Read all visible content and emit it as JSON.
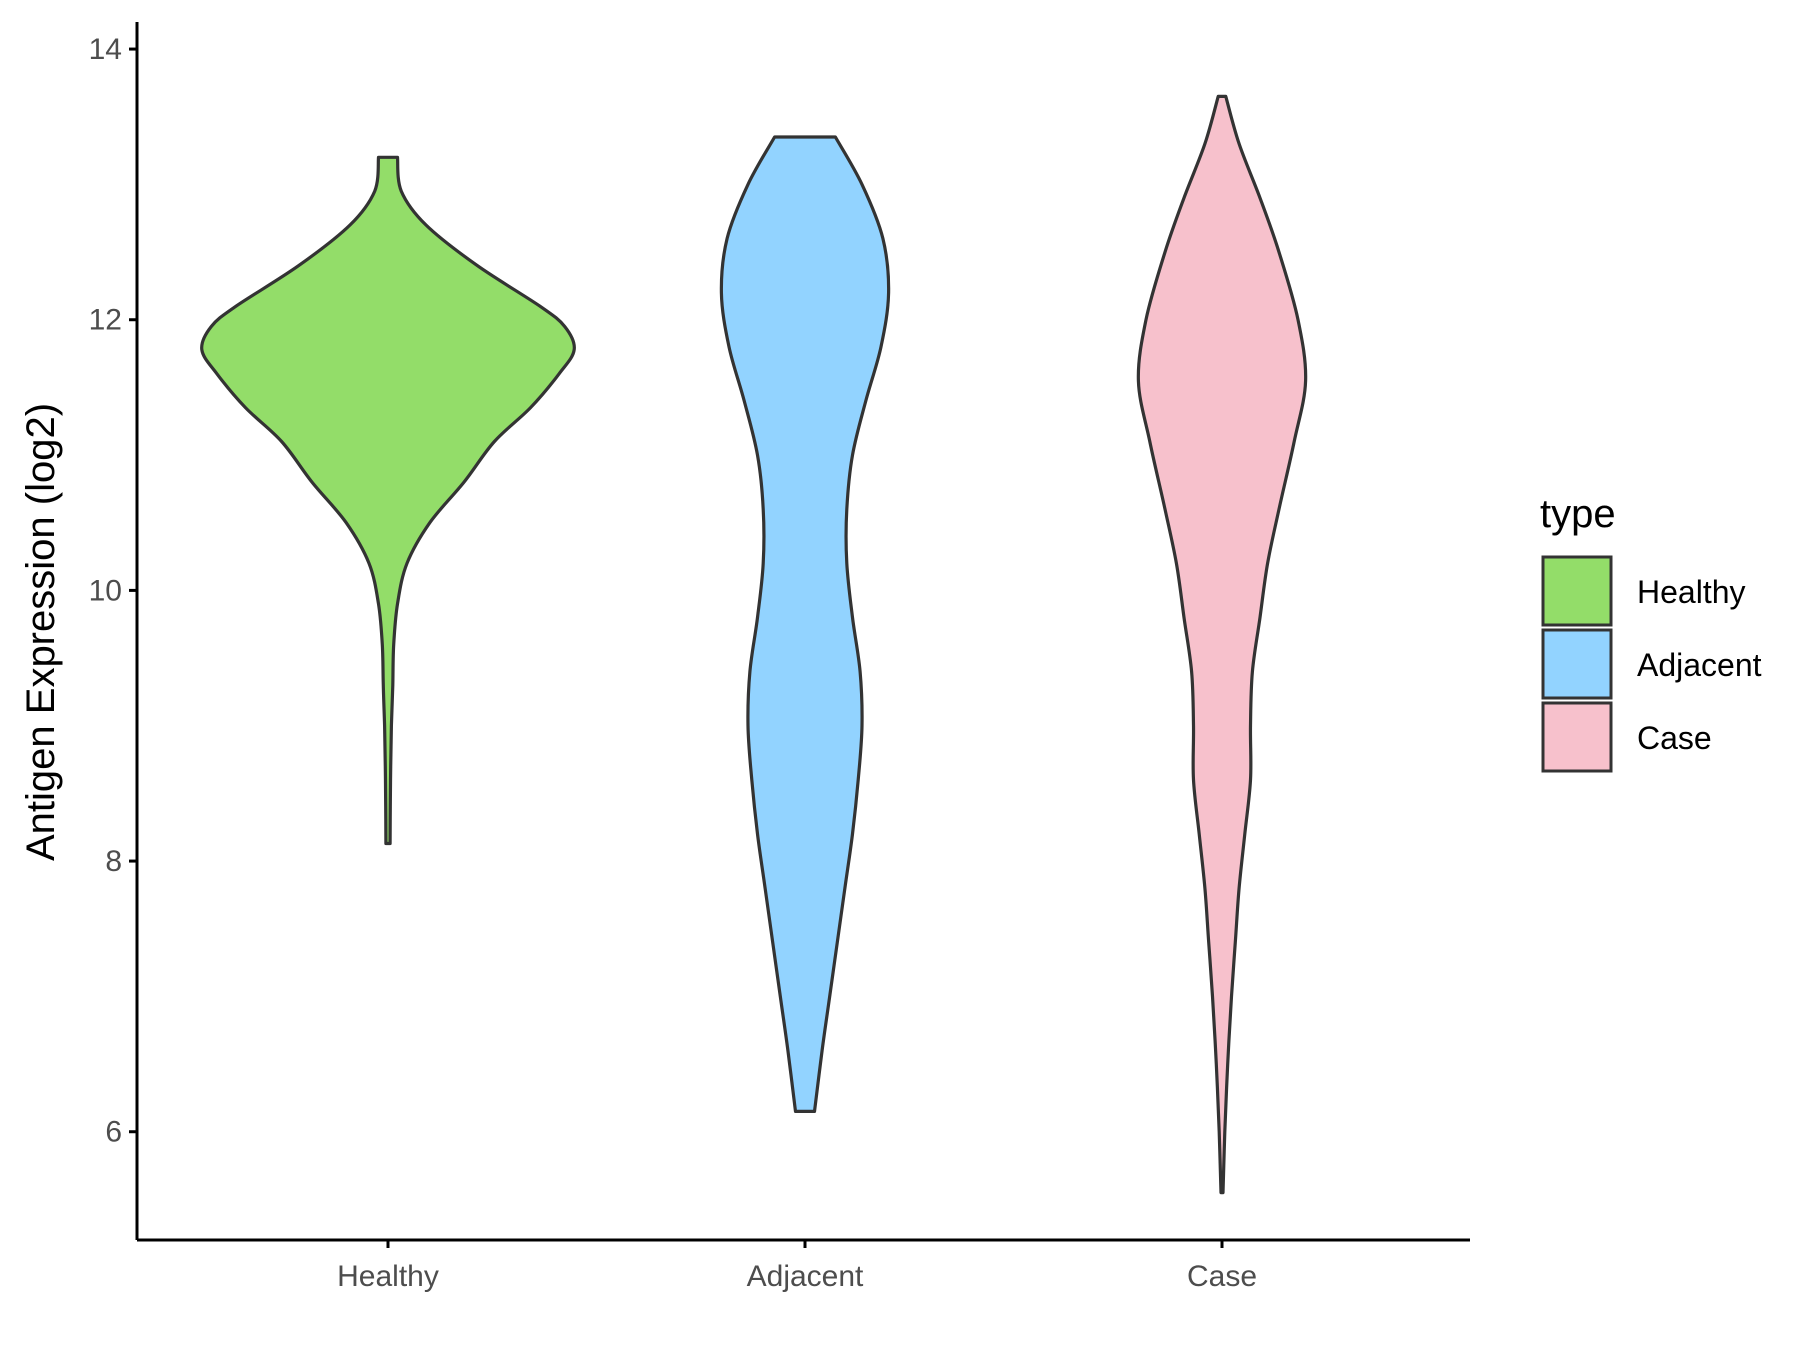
{
  "chart_data": {
    "type": "violin",
    "title": "",
    "xlabel": "",
    "ylabel": "Antigen Expression (log2)",
    "ylim": [
      5.2,
      14.2
    ],
    "yticks": [
      6,
      8,
      10,
      12,
      14
    ],
    "categories": [
      "Healthy",
      "Adjacent",
      "Case"
    ],
    "legend": {
      "title": "type",
      "position": "right",
      "entries": [
        "Healthy",
        "Adjacent",
        "Case"
      ]
    },
    "grid": false,
    "series": [
      {
        "name": "Healthy",
        "color": "#93DD69",
        "min": 8.13,
        "max": 13.2,
        "profile": [
          [
            13.2,
            0.05
          ],
          [
            12.95,
            0.07
          ],
          [
            12.7,
            0.2
          ],
          [
            12.4,
            0.47
          ],
          [
            12.1,
            0.8
          ],
          [
            11.95,
            0.93
          ],
          [
            11.78,
            0.98
          ],
          [
            11.6,
            0.9
          ],
          [
            11.35,
            0.75
          ],
          [
            11.1,
            0.56
          ],
          [
            10.8,
            0.4
          ],
          [
            10.5,
            0.22
          ],
          [
            10.2,
            0.1
          ],
          [
            9.9,
            0.05
          ],
          [
            9.6,
            0.03
          ],
          [
            9.3,
            0.025
          ],
          [
            9.0,
            0.018
          ],
          [
            8.7,
            0.014
          ],
          [
            8.4,
            0.012
          ],
          [
            8.13,
            0.011
          ]
        ]
      },
      {
        "name": "Adjacent",
        "color": "#92D3FF",
        "min": 6.15,
        "max": 13.35,
        "profile": [
          [
            13.35,
            0.16
          ],
          [
            13.0,
            0.3
          ],
          [
            12.6,
            0.41
          ],
          [
            12.2,
            0.44
          ],
          [
            11.8,
            0.4
          ],
          [
            11.4,
            0.32
          ],
          [
            11.0,
            0.25
          ],
          [
            10.6,
            0.22
          ],
          [
            10.2,
            0.22
          ],
          [
            9.8,
            0.25
          ],
          [
            9.4,
            0.29
          ],
          [
            9.0,
            0.3
          ],
          [
            8.6,
            0.28
          ],
          [
            8.2,
            0.25
          ],
          [
            7.8,
            0.21
          ],
          [
            7.4,
            0.17
          ],
          [
            7.0,
            0.13
          ],
          [
            6.6,
            0.09
          ],
          [
            6.15,
            0.05
          ]
        ]
      },
      {
        "name": "Case",
        "color": "#F7C1CC",
        "min": 5.55,
        "max": 13.65,
        "profile": [
          [
            13.65,
            0.02
          ],
          [
            13.3,
            0.09
          ],
          [
            12.9,
            0.2
          ],
          [
            12.5,
            0.3
          ],
          [
            12.0,
            0.4
          ],
          [
            11.55,
            0.44
          ],
          [
            11.1,
            0.38
          ],
          [
            10.6,
            0.3
          ],
          [
            10.2,
            0.24
          ],
          [
            9.8,
            0.2
          ],
          [
            9.4,
            0.16
          ],
          [
            9.0,
            0.15
          ],
          [
            8.6,
            0.15
          ],
          [
            8.2,
            0.12
          ],
          [
            7.8,
            0.09
          ],
          [
            7.4,
            0.07
          ],
          [
            7.0,
            0.05
          ],
          [
            6.5,
            0.03
          ],
          [
            6.0,
            0.015
          ],
          [
            5.55,
            0.005
          ]
        ]
      }
    ]
  }
}
